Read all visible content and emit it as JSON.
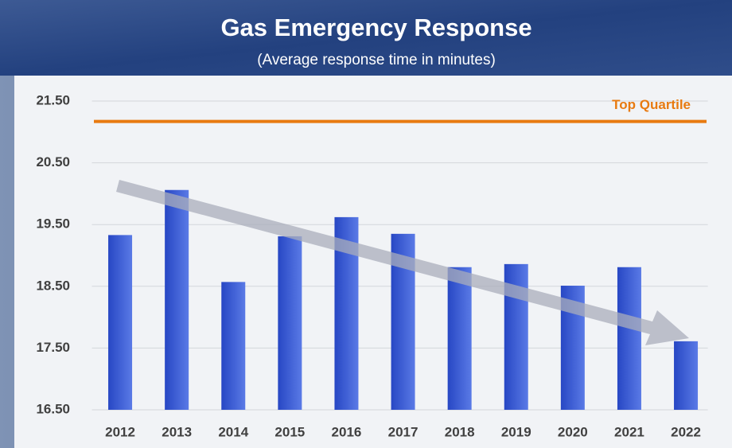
{
  "chart_data": {
    "type": "bar",
    "title": "Gas Emergency Response",
    "subtitle": "(Average response time in minutes)",
    "categories": [
      "2012",
      "2013",
      "2014",
      "2015",
      "2016",
      "2017",
      "2018",
      "2019",
      "2020",
      "2021",
      "2022"
    ],
    "values": [
      19.33,
      20.06,
      18.57,
      19.31,
      19.62,
      19.35,
      18.81,
      18.86,
      18.51,
      18.81,
      17.61
    ],
    "color": "#2747c4",
    "ylim": [
      16.5,
      21.5
    ],
    "yticks": [
      {
        "value": 16.5,
        "label": "16.50"
      },
      {
        "value": 17.5,
        "label": "17.50"
      },
      {
        "value": 18.5,
        "label": "18.50"
      },
      {
        "value": 19.5,
        "label": "19.50"
      },
      {
        "value": 20.5,
        "label": "20.50"
      },
      {
        "value": 21.5,
        "label": "21.50"
      }
    ],
    "grid": true,
    "reference": {
      "label": "Top Quartile",
      "value": 21.17,
      "color": "#e87a10"
    }
  }
}
